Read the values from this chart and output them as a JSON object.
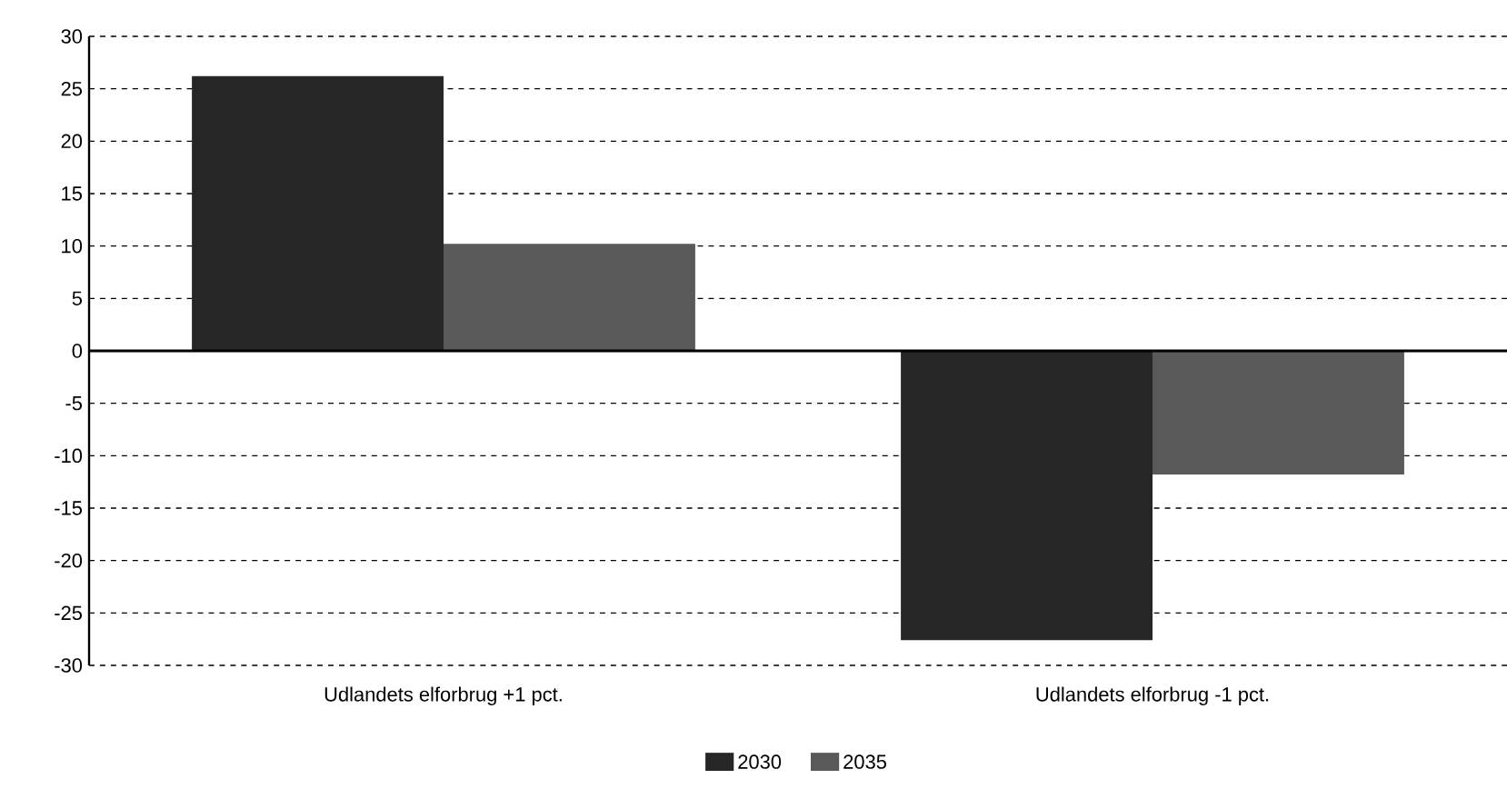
{
  "chart_data": {
    "type": "bar",
    "categories": [
      "Udlandets elforbrug +1 pct.",
      "Udlandets elforbrug -1 pct."
    ],
    "series": [
      {
        "name": "2030",
        "color": "#262626",
        "values": [
          26.2,
          -27.6
        ]
      },
      {
        "name": "2035",
        "color": "#595959",
        "values": [
          10.2,
          -11.8
        ]
      }
    ],
    "ylim": [
      -30,
      30
    ],
    "yticks": [
      -30,
      -25,
      -20,
      -15,
      -10,
      -5,
      0,
      5,
      10,
      15,
      20,
      25,
      30
    ],
    "grid": "y",
    "legend": "bottom"
  }
}
